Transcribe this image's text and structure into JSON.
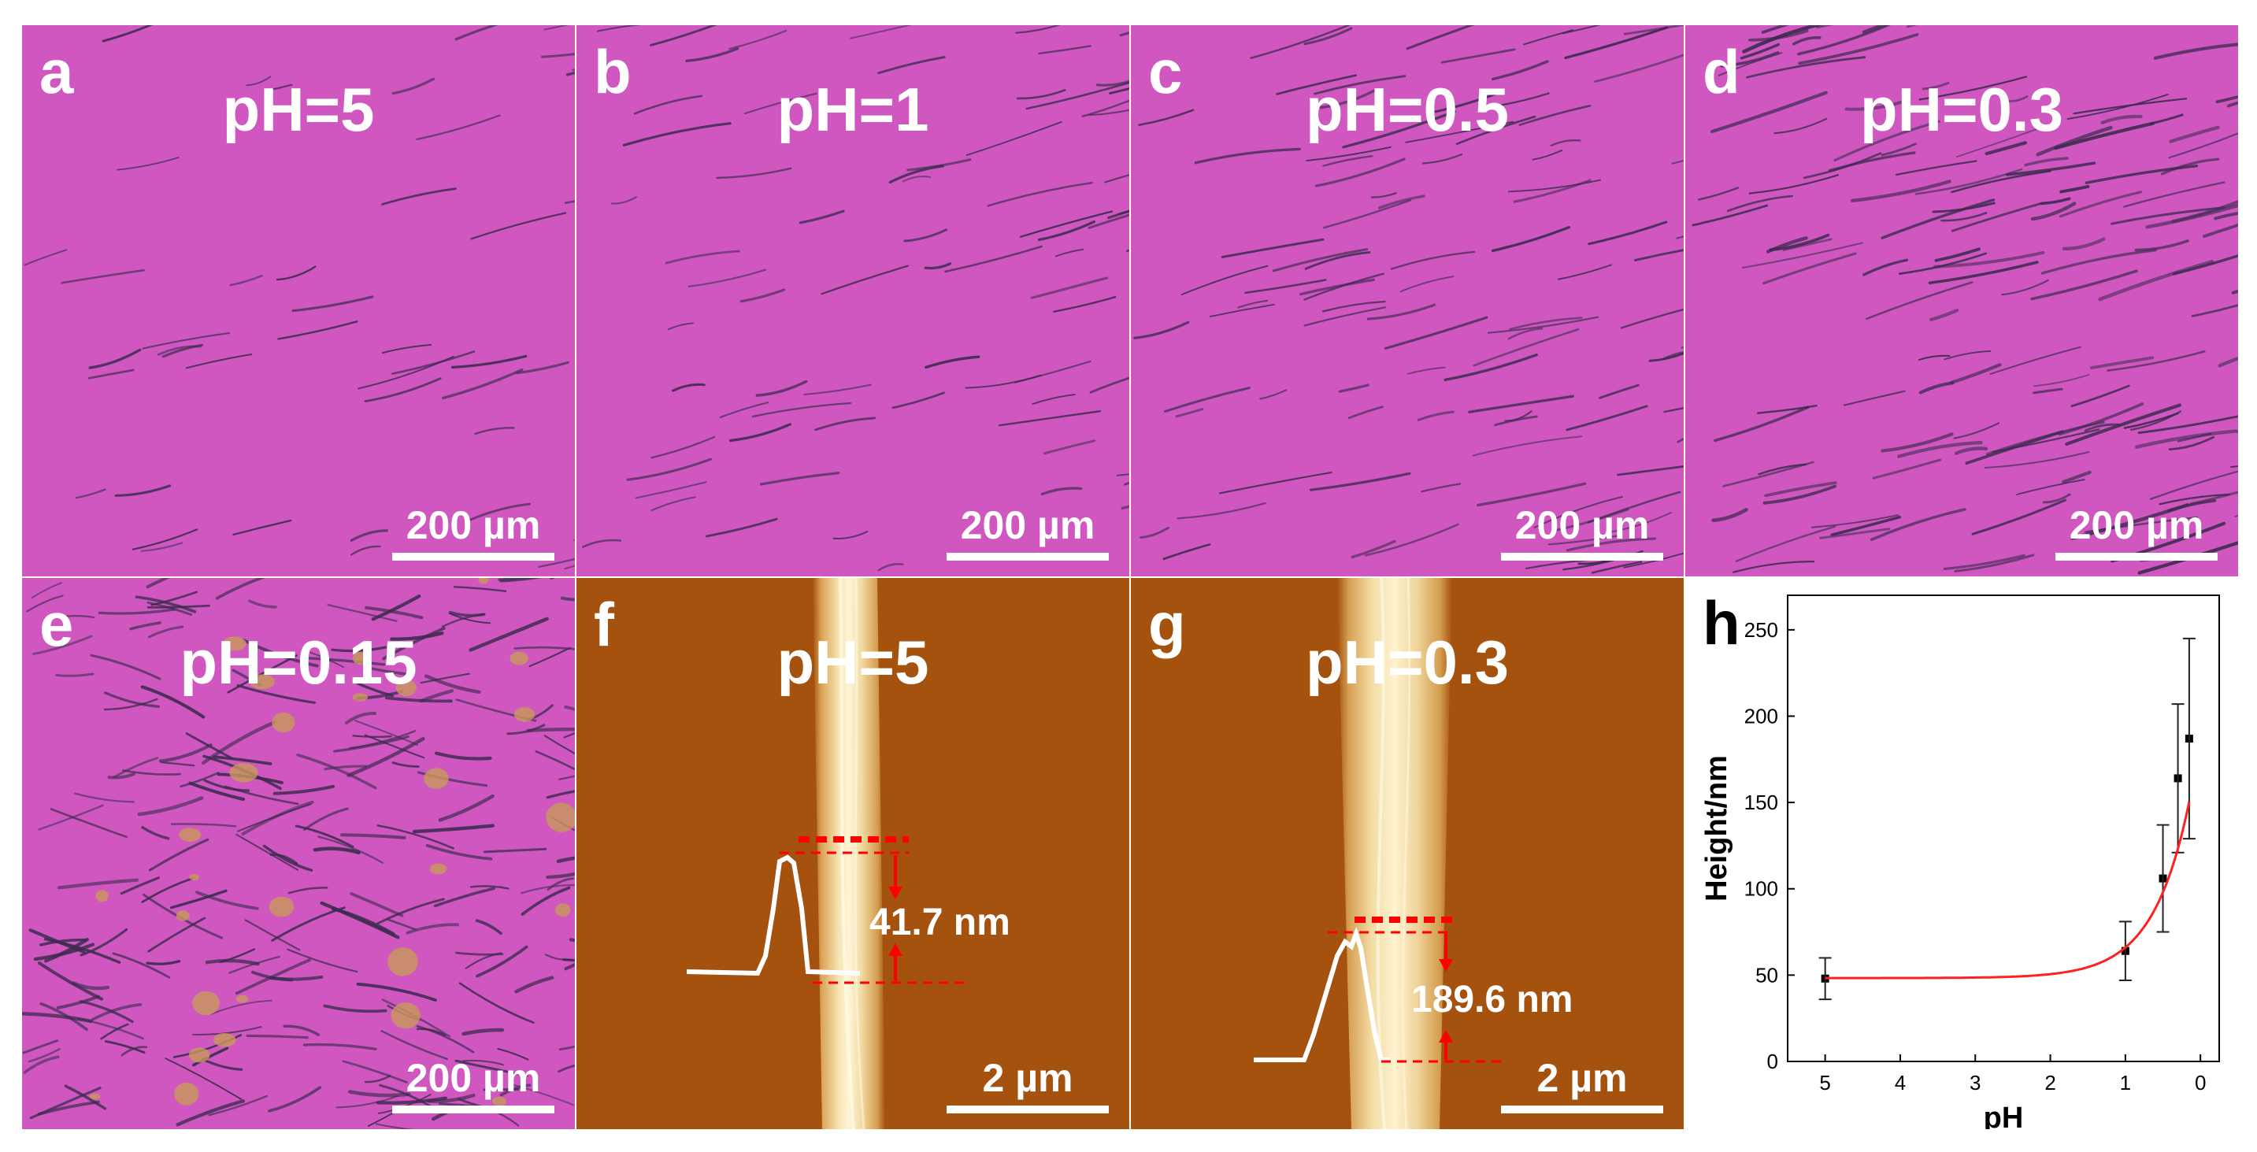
{
  "panels": [
    {
      "letter": "a",
      "title": "pH=5",
      "scalebar": "200 µm"
    },
    {
      "letter": "b",
      "title": "pH=1",
      "scalebar": "200 µm"
    },
    {
      "letter": "c",
      "title": "pH=0.5",
      "scalebar": "200 µm"
    },
    {
      "letter": "d",
      "title": "pH=0.3",
      "scalebar": "200 µm"
    },
    {
      "letter": "e",
      "title": "pH=0.15",
      "scalebar": "200 µm"
    },
    {
      "letter": "f",
      "title": "pH=5",
      "scalebar": "2 µm",
      "annotation": "41.7 nm"
    },
    {
      "letter": "g",
      "title": "pH=0.3",
      "scalebar": "2 µm",
      "annotation": "189.6 nm"
    },
    {
      "letter": "h"
    }
  ],
  "colors": {
    "optical_bg": "#cf57bf",
    "flake_edge": "#3b2b4f",
    "afm_bg": "#a4520e",
    "afm_fiber": "#f0dba0",
    "annotation_red": "#ff0000",
    "fit_line": "#ff2020"
  },
  "chart_data": {
    "type": "scatter",
    "title": "",
    "xlabel": "pH",
    "ylabel": "Height/nm",
    "x_reversed": true,
    "xlim": [
      5.5,
      -0.25
    ],
    "ylim": [
      0,
      270
    ],
    "x_ticks": [
      "5",
      "4",
      "3",
      "2",
      "1",
      "0"
    ],
    "y_ticks": [
      "0",
      "50",
      "100",
      "150",
      "200",
      "250"
    ],
    "points": [
      {
        "x": 5,
        "y": 48,
        "err": 12
      },
      {
        "x": 1,
        "y": 64,
        "err": 17
      },
      {
        "x": 0.5,
        "y": 106,
        "err": 31
      },
      {
        "x": 0.3,
        "y": 164,
        "err": 43
      },
      {
        "x": 0.15,
        "y": 187,
        "err": 58
      }
    ],
    "fit": "exponential",
    "grid": false
  }
}
